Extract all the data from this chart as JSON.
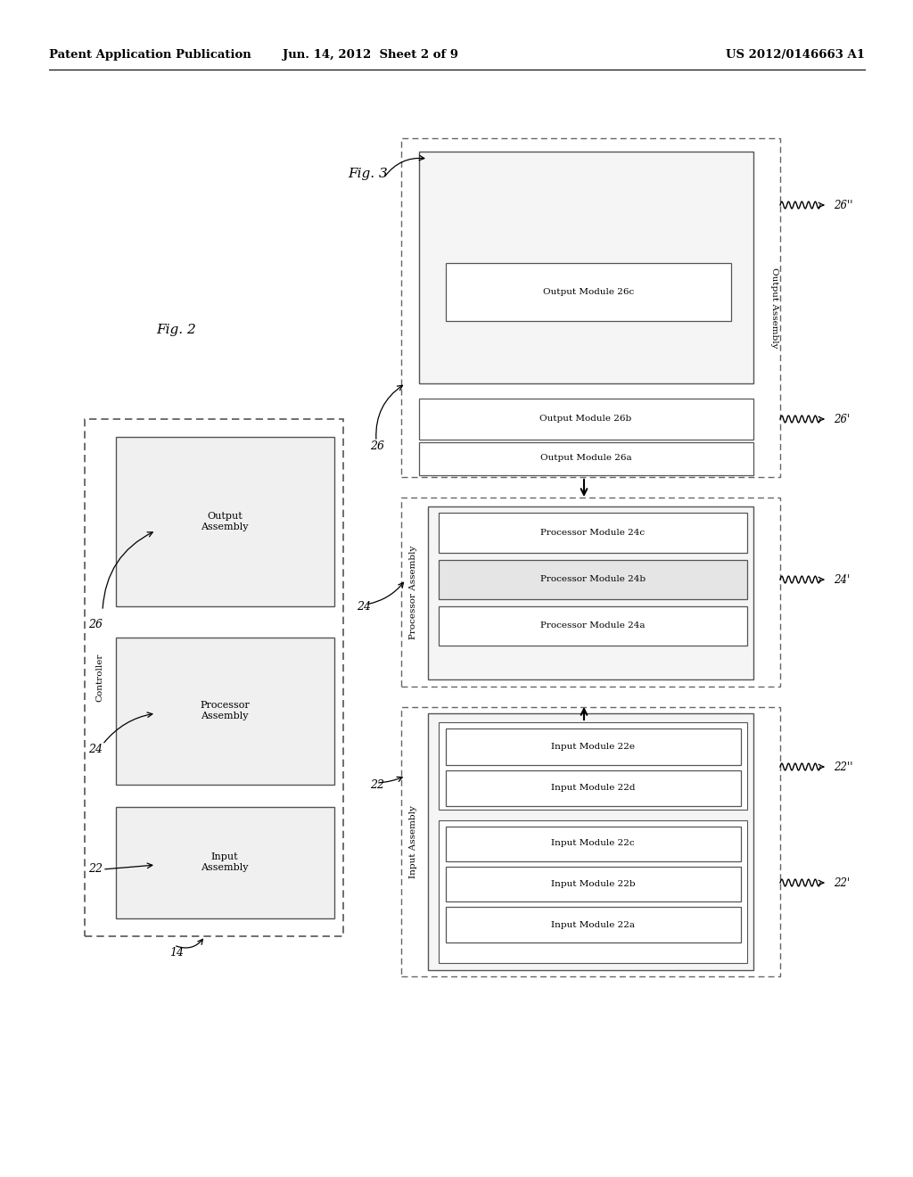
{
  "header_left": "Patent Application Publication",
  "header_mid": "Jun. 14, 2012  Sheet 2 of 9",
  "header_right": "US 2012/0146663 A1",
  "fig2_label": "Fig. 2",
  "fig3_label": "Fig. 3",
  "bg_color": "#ffffff"
}
